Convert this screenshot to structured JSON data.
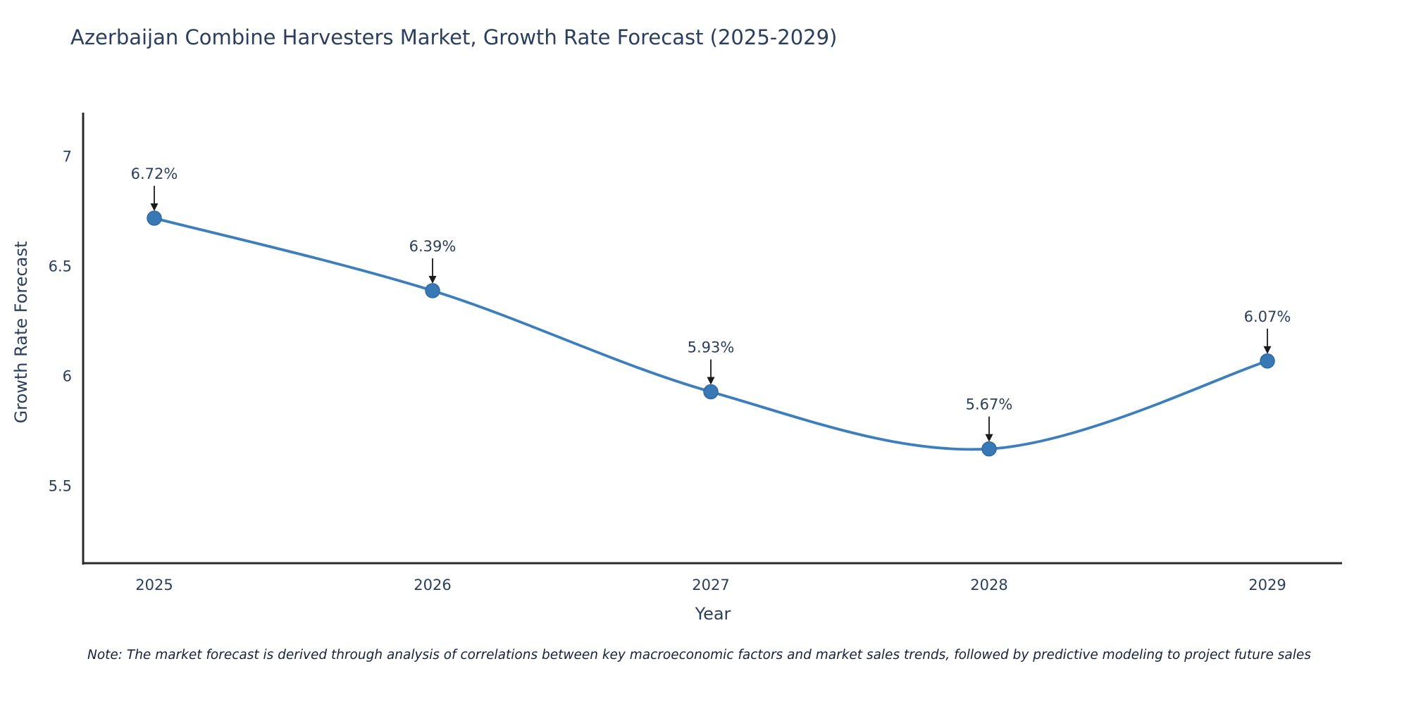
{
  "title": "Azerbaijan Combine Harvesters Market, Growth Rate Forecast (2025-2029)",
  "note": "Note: The market forecast is derived through analysis of correlations between key macroeconomic factors and market sales trends, followed by predictive modeling to project future sales",
  "chart_data": {
    "type": "line",
    "title": "Azerbaijan Combine Harvesters Market, Growth Rate Forecast (2025-2029)",
    "xlabel": "Year",
    "ylabel": "Growth Rate Forecast",
    "categories": [
      "2025",
      "2026",
      "2027",
      "2028",
      "2029"
    ],
    "series": [
      {
        "name": "Growth Rate Forecast",
        "values": [
          6.72,
          6.39,
          5.93,
          5.67,
          6.07
        ]
      }
    ],
    "data_labels": [
      "6.72%",
      "6.39%",
      "5.93%",
      "5.67%",
      "6.07%"
    ],
    "y_ticks": [
      5.5,
      6,
      6.5,
      7
    ],
    "ylim": [
      5.15,
      7.2
    ],
    "grid": false,
    "legend": "none",
    "line_color": "#3d7ebd",
    "marker_color": "#3878b4",
    "annotation_arrow_color": "#1a1a1a",
    "text_color": "#2a3f5f",
    "axis_color": "#2b2b2b"
  }
}
